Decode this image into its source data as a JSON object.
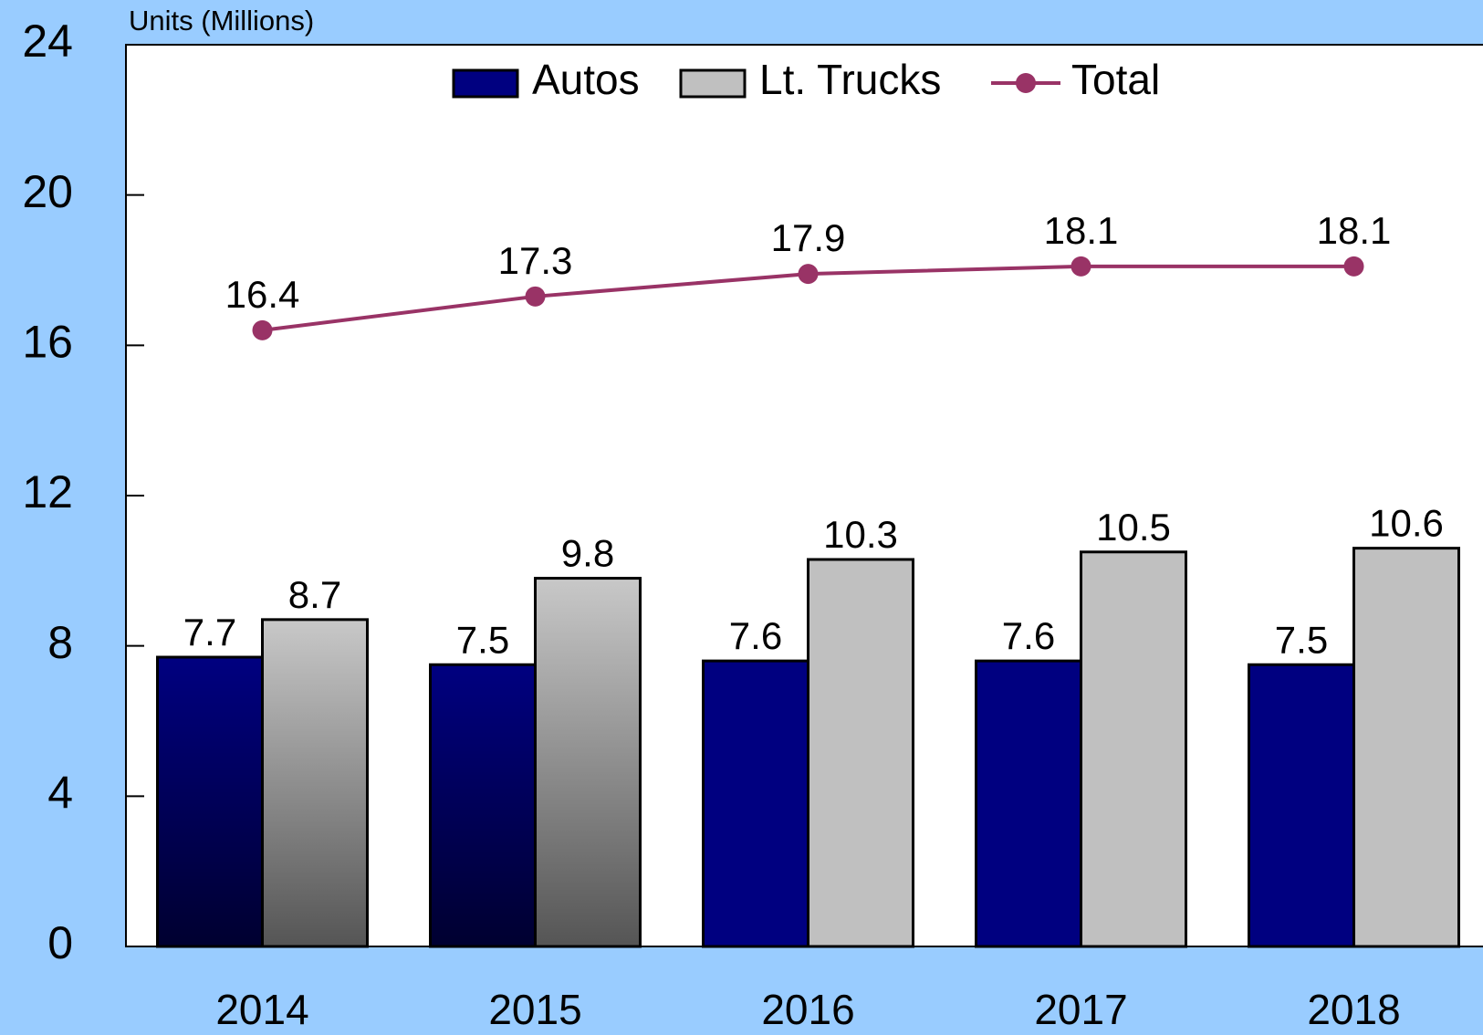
{
  "chart_data": {
    "type": "bar",
    "y_axis_label": "Units (Millions)",
    "categories": [
      "2014",
      "2015",
      "2016",
      "2017",
      "2018"
    ],
    "series": [
      {
        "name": "Autos",
        "type": "bar",
        "color": "#000080",
        "values": [
          7.7,
          7.5,
          7.6,
          7.6,
          7.5
        ]
      },
      {
        "name": "Lt. Trucks",
        "type": "bar",
        "color": "#c0c0c0",
        "values": [
          8.7,
          9.8,
          10.3,
          10.5,
          10.6
        ]
      },
      {
        "name": "Total",
        "type": "line",
        "color": "#993366",
        "values": [
          16.4,
          17.3,
          17.9,
          18.1,
          18.1
        ]
      }
    ],
    "gradient": [
      true,
      true,
      false,
      false,
      false
    ],
    "ylim": [
      0,
      24
    ],
    "yticks": [
      0,
      4,
      8,
      12,
      16,
      20,
      24
    ],
    "legend": "top"
  }
}
